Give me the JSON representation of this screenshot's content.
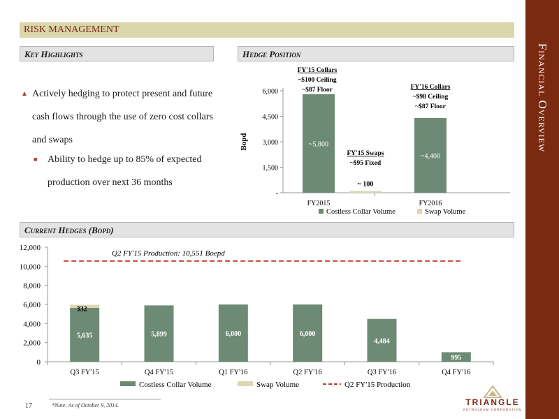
{
  "page": {
    "side_title": "Financial Overview",
    "section_banner": "RISK MANAGEMENT",
    "key_highlights_title": "Key Highlights",
    "hedge_position_title": "Hedge Position",
    "current_hedges_title": "Current Hedges (Bopd)",
    "bullets": [
      "Actively hedging to protect present and future cash flows through the use of zero cost collars and swaps",
      "Ability to hedge up to 85% of expected production over next 36 months"
    ],
    "page_number": "17",
    "footnote": "*Note: As of October 9, 2014.",
    "logo_text": "TRIANGLE",
    "logo_subtext": "PETROLEUM CORPORATION"
  },
  "colors": {
    "maroon": "#7b2a12",
    "collar": "#6d8a74",
    "swap": "#ddd6b4",
    "production_line": "#c0392b",
    "banner": "#d9d6aa",
    "bullet": "#b03a2e"
  },
  "chart_data": [
    {
      "type": "bar",
      "title": "",
      "ylabel": "Bopd",
      "ylim": [
        0,
        6000
      ],
      "yticks": [
        0,
        1500,
        3000,
        4500,
        6000
      ],
      "ytick_labels": [
        "-",
        "1,500",
        "3,000",
        "4,500",
        "6,000"
      ],
      "categories": [
        "FY2015",
        "FY2016"
      ],
      "series": [
        {
          "name": "Costless Collar Volume",
          "values": [
            5800,
            4400
          ],
          "labels": [
            "~5,800",
            "~4,400"
          ]
        },
        {
          "name": "Swap Volume",
          "values": [
            100,
            null
          ],
          "labels": [
            "~ 100",
            ""
          ]
        }
      ],
      "annotations": [
        {
          "lines": [
            "FY'15 Collars",
            "~$100 Ceiling",
            "~$87 Floor"
          ]
        },
        {
          "lines": [
            "FY'15 Swaps",
            "~$95 Fixed"
          ]
        },
        {
          "lines": [
            "FY'16 Collars",
            "~$98 Ceiling",
            "~$87 Floor"
          ]
        }
      ],
      "legend": "bottom"
    },
    {
      "type": "bar",
      "stacked": true,
      "title": "",
      "ylim": [
        0,
        12000
      ],
      "yticks": [
        0,
        2000,
        4000,
        6000,
        8000,
        10000,
        12000
      ],
      "ytick_labels": [
        "0",
        "2,000",
        "4,000",
        "6,000",
        "8,000",
        "10,000",
        "12,000"
      ],
      "categories": [
        "Q3 FY'15",
        "Q4 FY'15",
        "Q1 FY'16",
        "Q2 FY'16",
        "Q3 FY'16",
        "Q4 FY'16"
      ],
      "series": [
        {
          "name": "Costless Collar Volume",
          "values": [
            5635,
            5899,
            6000,
            6000,
            4484,
            995
          ],
          "labels": [
            "5,635",
            "5,899",
            "6,000",
            "6,000",
            "4,484",
            "995"
          ]
        },
        {
          "name": "Swap Volume",
          "values": [
            332,
            0,
            0,
            0,
            0,
            0
          ],
          "labels": [
            "332",
            "",
            "",
            "",
            "",
            ""
          ]
        }
      ],
      "reference_line": {
        "name": "Q2 FY'15 Production",
        "value": 10551,
        "label": "Q2 FY'15 Production: 10,551 Boepd"
      },
      "legend": "bottom"
    }
  ]
}
